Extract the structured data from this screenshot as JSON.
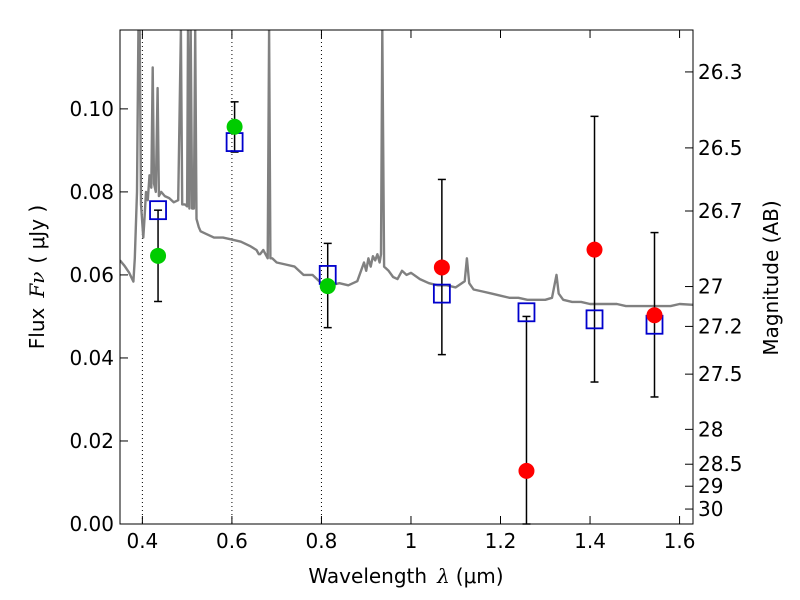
{
  "chart_data": {
    "type": "scatter",
    "xlabel": {
      "prefix": "Wavelength",
      "symbol": "λ",
      "unit": "(μm)"
    },
    "ylabel": {
      "prefix": "Flux",
      "symbol": "Fν",
      "unit": "( μJy )"
    },
    "y2label": "Magnitude (AB)",
    "xlim": [
      0.35,
      1.63
    ],
    "ylim": [
      0.0,
      0.119
    ],
    "x_ticks": [
      0.4,
      0.6,
      0.8,
      1.0,
      1.2,
      1.4,
      1.6
    ],
    "x_tick_labels": [
      "0.4",
      "0.6",
      "0.8",
      "1",
      "1.2",
      "1.4",
      "1.6"
    ],
    "y_ticks": [
      0.0,
      0.02,
      0.04,
      0.06,
      0.08,
      0.1
    ],
    "y_tick_labels": [
      "0.00",
      "0.02",
      "0.04",
      "0.06",
      "0.08",
      "0.10"
    ],
    "y2_ticks": [
      {
        "label": "26.3",
        "flux": 0.1089
      },
      {
        "label": "26.5",
        "flux": 0.0906
      },
      {
        "label": "26.7",
        "flux": 0.0754
      },
      {
        "label": "27",
        "flux": 0.0572
      },
      {
        "label": "27.2",
        "flux": 0.0476
      },
      {
        "label": "27.5",
        "flux": 0.0361
      },
      {
        "label": "28",
        "flux": 0.0228
      },
      {
        "label": "28.5",
        "flux": 0.0144
      },
      {
        "label": "29",
        "flux": 0.0091
      },
      {
        "label": "30",
        "flux": 0.0036
      }
    ],
    "grid": {
      "x_dotted": [
        0.4,
        0.6,
        0.8
      ]
    },
    "series": [
      {
        "kind": "line",
        "color": "#808080",
        "points": [
          [
            0.35,
            0.0635
          ],
          [
            0.36,
            0.0622
          ],
          [
            0.37,
            0.0606
          ],
          [
            0.38,
            0.0584
          ],
          [
            0.383,
            0.064
          ],
          [
            0.388,
            0.08
          ],
          [
            0.391,
            0.119
          ],
          [
            0.394,
            0.119
          ],
          [
            0.397,
            0.077
          ],
          [
            0.402,
            0.069
          ],
          [
            0.405,
            0.074
          ],
          [
            0.408,
            0.08
          ],
          [
            0.412,
            0.078
          ],
          [
            0.416,
            0.084
          ],
          [
            0.42,
            0.081
          ],
          [
            0.423,
            0.11
          ],
          [
            0.426,
            0.082
          ],
          [
            0.43,
            0.08
          ],
          [
            0.434,
            0.105
          ],
          [
            0.437,
            0.079
          ],
          [
            0.442,
            0.08
          ],
          [
            0.45,
            0.079
          ],
          [
            0.46,
            0.0785
          ],
          [
            0.47,
            0.0775
          ],
          [
            0.48,
            0.078
          ],
          [
            0.486,
            0.119
          ],
          [
            0.489,
            0.077
          ],
          [
            0.495,
            0.077
          ],
          [
            0.5,
            0.0765
          ],
          [
            0.502,
            0.119
          ],
          [
            0.505,
            0.076
          ],
          [
            0.508,
            0.119
          ],
          [
            0.511,
            0.076
          ],
          [
            0.515,
            0.076
          ],
          [
            0.518,
            0.119
          ],
          [
            0.521,
            0.0735
          ],
          [
            0.526,
            0.0715
          ],
          [
            0.53,
            0.0705
          ],
          [
            0.54,
            0.07
          ],
          [
            0.56,
            0.069
          ],
          [
            0.58,
            0.069
          ],
          [
            0.6,
            0.0685
          ],
          [
            0.62,
            0.068
          ],
          [
            0.64,
            0.067
          ],
          [
            0.655,
            0.066
          ],
          [
            0.66,
            0.065
          ],
          [
            0.663,
            0.065
          ],
          [
            0.67,
            0.066
          ],
          [
            0.675,
            0.065
          ],
          [
            0.68,
            0.064
          ],
          [
            0.683,
            0.119
          ],
          [
            0.686,
            0.064
          ],
          [
            0.69,
            0.064
          ],
          [
            0.7,
            0.063
          ],
          [
            0.72,
            0.0625
          ],
          [
            0.74,
            0.062
          ],
          [
            0.76,
            0.06
          ],
          [
            0.78,
            0.06
          ],
          [
            0.8,
            0.058
          ],
          [
            0.82,
            0.0575
          ],
          [
            0.84,
            0.058
          ],
          [
            0.86,
            0.0575
          ],
          [
            0.88,
            0.0585
          ],
          [
            0.895,
            0.063
          ],
          [
            0.9,
            0.061
          ],
          [
            0.905,
            0.064
          ],
          [
            0.91,
            0.062
          ],
          [
            0.915,
            0.0645
          ],
          [
            0.92,
            0.0635
          ],
          [
            0.925,
            0.065
          ],
          [
            0.93,
            0.063
          ],
          [
            0.933,
            0.065
          ],
          [
            0.936,
            0.119
          ],
          [
            0.94,
            0.062
          ],
          [
            0.95,
            0.061
          ],
          [
            0.96,
            0.0595
          ],
          [
            0.97,
            0.059
          ],
          [
            0.98,
            0.061
          ],
          [
            0.99,
            0.06
          ],
          [
            1.0,
            0.0605
          ],
          [
            1.02,
            0.059
          ],
          [
            1.04,
            0.058
          ],
          [
            1.06,
            0.0575
          ],
          [
            1.08,
            0.0575
          ],
          [
            1.1,
            0.057
          ],
          [
            1.12,
            0.0585
          ],
          [
            1.125,
            0.064
          ],
          [
            1.13,
            0.058
          ],
          [
            1.14,
            0.0565
          ],
          [
            1.16,
            0.056
          ],
          [
            1.18,
            0.0555
          ],
          [
            1.2,
            0.055
          ],
          [
            1.22,
            0.0545
          ],
          [
            1.24,
            0.0545
          ],
          [
            1.26,
            0.054
          ],
          [
            1.28,
            0.054
          ],
          [
            1.3,
            0.054
          ],
          [
            1.315,
            0.0545
          ],
          [
            1.325,
            0.06
          ],
          [
            1.33,
            0.0555
          ],
          [
            1.34,
            0.054
          ],
          [
            1.36,
            0.0535
          ],
          [
            1.38,
            0.0535
          ],
          [
            1.4,
            0.053
          ],
          [
            1.42,
            0.053
          ],
          [
            1.44,
            0.053
          ],
          [
            1.46,
            0.053
          ],
          [
            1.48,
            0.0525
          ],
          [
            1.5,
            0.0525
          ],
          [
            1.52,
            0.0525
          ],
          [
            1.54,
            0.0525
          ],
          [
            1.56,
            0.0525
          ],
          [
            1.58,
            0.0525
          ],
          [
            1.6,
            0.053
          ],
          [
            1.63,
            0.0528
          ]
        ]
      },
      {
        "kind": "scatter-errorbar",
        "marker": "circle",
        "color": "#00cc00",
        "points": [
          {
            "x": 0.435,
            "y": 0.0646,
            "yerr": [
              0.0536,
              0.0756
            ]
          },
          {
            "x": 0.606,
            "y": 0.0957,
            "yerr": [
              0.0896,
              0.1017
            ]
          },
          {
            "x": 0.814,
            "y": 0.0573,
            "yerr": [
              0.0473,
              0.0676
            ]
          }
        ]
      },
      {
        "kind": "scatter-errorbar",
        "marker": "circle",
        "color": "#ff0000",
        "points": [
          {
            "x": 1.069,
            "y": 0.0618,
            "yerr": [
              0.0408,
              0.083
            ]
          },
          {
            "x": 1.258,
            "y": 0.0128,
            "yerr": [
              0.0,
              0.05
            ]
          },
          {
            "x": 1.41,
            "y": 0.0661,
            "yerr": [
              0.0342,
              0.0982
            ]
          },
          {
            "x": 1.544,
            "y": 0.0503,
            "yerr": [
              0.0306,
              0.0702
            ]
          }
        ]
      },
      {
        "kind": "scatter",
        "marker": "open-square",
        "color": "#0000cc",
        "points": [
          {
            "x": 0.435,
            "y": 0.0756
          },
          {
            "x": 0.606,
            "y": 0.092
          },
          {
            "x": 0.814,
            "y": 0.06
          },
          {
            "x": 1.069,
            "y": 0.0555
          },
          {
            "x": 1.258,
            "y": 0.051
          },
          {
            "x": 1.41,
            "y": 0.0493
          },
          {
            "x": 1.544,
            "y": 0.048
          }
        ]
      }
    ]
  }
}
